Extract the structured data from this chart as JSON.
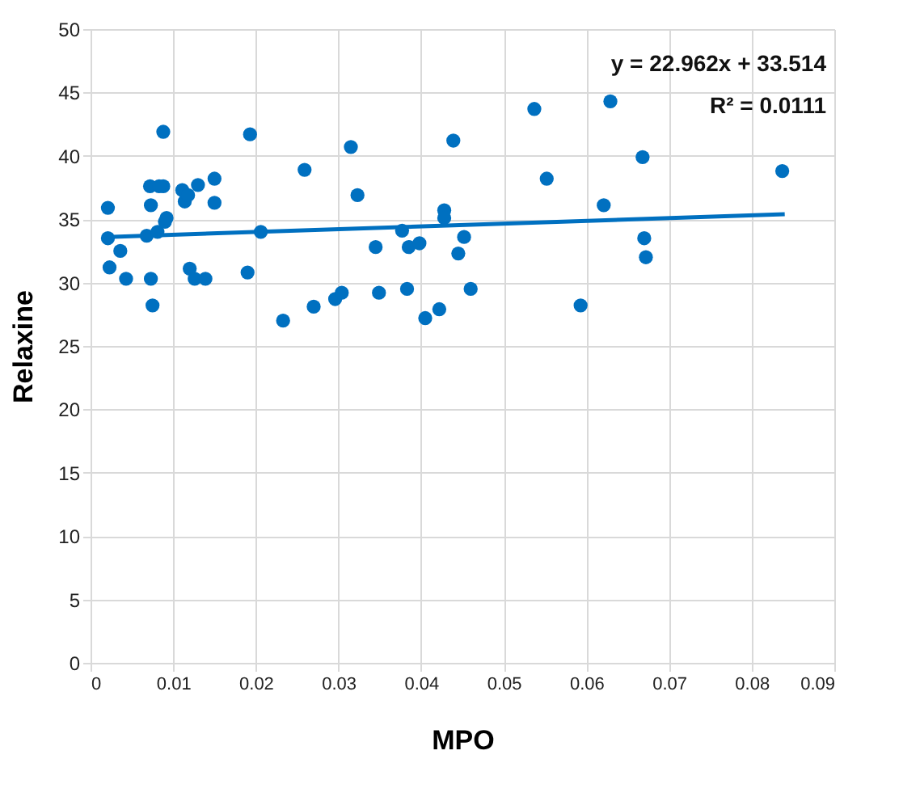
{
  "chart_data": {
    "type": "scatter",
    "xlabel": "MPO",
    "ylabel": "Relaxine",
    "annotations": [
      "y = 22.962x + 33.514",
      "R² = 0.0111"
    ],
    "xlim": [
      0,
      0.09
    ],
    "xticks": [
      0,
      0.01,
      0.02,
      0.03,
      0.04,
      0.05,
      0.06,
      0.07,
      0.08,
      0.09
    ],
    "ylim": [
      0,
      50
    ],
    "yticks": [
      0,
      5,
      10,
      15,
      20,
      25,
      30,
      35,
      40,
      45,
      50
    ],
    "grid": true,
    "marker": "circle",
    "series": [
      {
        "color": "#0070c0",
        "x": [
          0.0021,
          0.0021,
          0.0023,
          0.0036,
          0.0043,
          0.0068,
          0.0073,
          0.0072,
          0.0073,
          0.0075,
          0.0088,
          0.0081,
          0.0083,
          0.009,
          0.0092,
          0.0088,
          0.0111,
          0.0114,
          0.0118,
          0.013,
          0.015,
          0.015,
          0.0193,
          0.0259,
          0.012,
          0.0126,
          0.0139,
          0.019,
          0.0206,
          0.0233,
          0.027,
          0.0296,
          0.0304,
          0.0315,
          0.0323,
          0.0345,
          0.0349,
          0.0377,
          0.0385,
          0.0398,
          0.0383,
          0.0405,
          0.0422,
          0.0428,
          0.0428,
          0.0439,
          0.0452,
          0.0445,
          0.046,
          0.0537,
          0.0552,
          0.0593,
          0.0621,
          0.0629,
          0.0668,
          0.067,
          0.0672,
          0.0837
        ],
        "values": [
          35.9,
          33.5,
          31.2,
          32.5,
          30.3,
          33.7,
          36.1,
          37.6,
          30.3,
          28.2,
          37.6,
          34.0,
          37.6,
          34.8,
          35.1,
          41.9,
          37.3,
          36.4,
          36.9,
          37.7,
          38.2,
          36.3,
          41.7,
          38.9,
          31.1,
          30.3,
          30.3,
          30.8,
          34.0,
          27.0,
          28.1,
          28.7,
          29.2,
          40.7,
          36.9,
          32.8,
          29.2,
          34.1,
          32.8,
          33.1,
          29.5,
          27.2,
          27.9,
          35.7,
          35.1,
          41.2,
          33.6,
          32.3,
          29.5,
          43.7,
          38.2,
          28.2,
          36.1,
          44.3,
          39.9,
          33.5,
          32.0,
          38.8
        ]
      },
      {
        "type": "line",
        "marker": "none",
        "color": "#0070c0",
        "x": [
          0.002,
          0.084
        ],
        "values": [
          33.6,
          35.4
        ]
      }
    ]
  }
}
